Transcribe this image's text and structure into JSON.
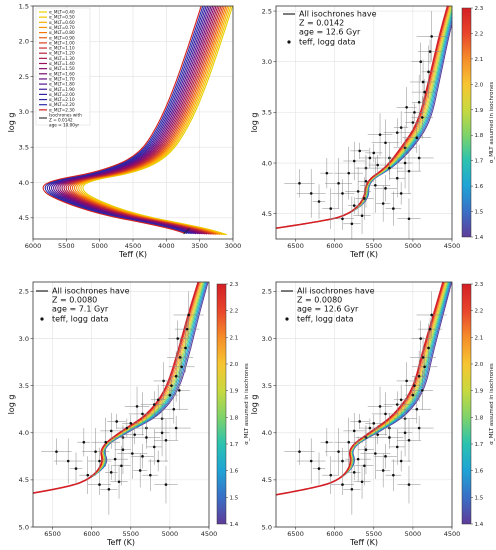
{
  "chart_data": [
    {
      "panel": "top-left",
      "type": "line",
      "xlabel": "Teff (K)",
      "ylabel": "log g",
      "xlim": [
        6000,
        3000
      ],
      "ylim": [
        4.8,
        1.5
      ],
      "xticks": [
        6000,
        5500,
        5000,
        4500,
        4000,
        3500,
        3000
      ],
      "xtick_labels": [
        "6000",
        "5500",
        "5000",
        "4500",
        "4000",
        "3500",
        "3000"
      ],
      "yticks": [
        1.5,
        2.0,
        2.5,
        3.0,
        3.5,
        4.0,
        4.5
      ],
      "ytick_labels": [
        "1.5",
        "2.0",
        "2.5",
        "3.0",
        "3.5",
        "4.0",
        "4.5"
      ],
      "grid": true,
      "legend_position": "upper-left",
      "legend_entries": [
        "α_MLT=0.40",
        "α_MLT=0.50",
        "α_MLT=0.60",
        "α_MLT=0.70",
        "α_MLT=0.80",
        "α_MLT=0.90",
        "α_MLT=1.00",
        "α_MLT=1.10",
        "α_MLT=1.20",
        "α_MLT=1.30",
        "α_MLT=1.40",
        "α_MLT=1.50",
        "α_MLT=1.60",
        "α_MLT=1.70",
        "α_MLT=1.80",
        "α_MLT=1.90",
        "α_MLT=2.00",
        "α_MLT=2.10",
        "α_MLT=2.20",
        "α_MLT=2.30"
      ],
      "legend_note": [
        "Isochrones with",
        "Z = 0.0142",
        "age = 10.00yr"
      ],
      "alpha_values": [
        0.4,
        0.5,
        0.6,
        0.7,
        0.8,
        0.9,
        1.0,
        1.1,
        1.2,
        1.3,
        1.4,
        1.5,
        1.6,
        1.7,
        1.8,
        1.9,
        2.0,
        2.1,
        2.2,
        2.3
      ],
      "series_colors": [
        "#e8d000",
        "#f2c400",
        "#f9ad00",
        "#fb9200",
        "#f47400",
        "#e75a10",
        "#d8421f",
        "#c82f2e",
        "#b8213d",
        "#a8174c",
        "#98105b",
        "#870c6a",
        "#760c78",
        "#650e84",
        "#541390",
        "#42199a",
        "#3520a2",
        "#2d26a8",
        "#2a2cac",
        "#d42020"
      ],
      "isochrone_xy": {
        "note": "per alpha: [Teff, logg] knots; Teff shifts cooler as alpha decreases",
        "base": [
          [
            3720,
            4.72
          ],
          [
            3900,
            4.66
          ],
          [
            4400,
            4.56
          ],
          [
            5000,
            4.45
          ],
          [
            5550,
            4.28
          ],
          [
            5880,
            4.12
          ],
          [
            5800,
            3.98
          ],
          [
            5000,
            3.85
          ],
          [
            4420,
            3.62
          ],
          [
            4130,
            3.2
          ],
          [
            3900,
            2.7
          ],
          [
            3680,
            2.1
          ],
          [
            3460,
            1.45
          ]
        ]
      }
    },
    {
      "panel": "top-right",
      "type": "line+scatter",
      "xlabel": "Teff (K)",
      "ylabel": "log g",
      "xlim": [
        6750,
        4500
      ],
      "ylim": [
        4.75,
        2.45
      ],
      "xticks": [
        6500,
        6000,
        5500,
        5000,
        4500
      ],
      "xtick_labels": [
        "6500",
        "6000",
        "5500",
        "5000",
        "4500"
      ],
      "yticks": [
        2.5,
        3.0,
        3.5,
        4.0,
        4.5
      ],
      "ytick_labels": [
        "2.5",
        "3.0",
        "3.5",
        "4.0",
        "4.5"
      ],
      "grid": true,
      "legend_position": "upper-left",
      "legend_entries": [
        "All isochrones have",
        "Z = 0.0142",
        "age = 12.6 Gyr",
        "teff, logg data"
      ],
      "colorbar": {
        "label": "α_MLT assumed in isochrones",
        "range": [
          1.4,
          2.3
        ],
        "ticks": [
          "1.4",
          "1.5",
          "1.6",
          "1.7",
          "1.8",
          "1.9",
          "2.0",
          "2.1",
          "2.2",
          "2.3"
        ]
      }
    },
    {
      "panel": "bottom-left",
      "type": "line+scatter",
      "xlabel": "Teff (K)",
      "ylabel": "log g",
      "xlim": [
        6750,
        4500
      ],
      "ylim": [
        5.0,
        2.4
      ],
      "xticks": [
        6500,
        6000,
        5500,
        5000,
        4500
      ],
      "xtick_labels": [
        "6500",
        "6000",
        "5500",
        "5000",
        "4500"
      ],
      "yticks": [
        2.5,
        3.0,
        3.5,
        4.0,
        4.5,
        5.0
      ],
      "ytick_labels": [
        "2.5",
        "3.0",
        "3.5",
        "4.0",
        "4.5",
        "5.0"
      ],
      "grid": true,
      "legend_position": "upper-left",
      "legend_entries": [
        "All isochrones have",
        "Z = 0.0080",
        "age = 7.1 Gyr",
        "teff, logg data"
      ],
      "colorbar": {
        "label": "α_MLT assumed in isochrones",
        "range": [
          1.4,
          2.3
        ],
        "ticks": [
          "1.4",
          "1.5",
          "1.6",
          "1.7",
          "1.8",
          "1.9",
          "2.0",
          "2.1",
          "2.2",
          "2.3"
        ]
      }
    },
    {
      "panel": "bottom-right",
      "type": "line+scatter",
      "xlabel": "Teff (K)",
      "ylabel": "log g",
      "xlim": [
        6750,
        4500
      ],
      "ylim": [
        5.0,
        2.4
      ],
      "xticks": [
        6500,
        6000,
        5500,
        5000,
        4500
      ],
      "xtick_labels": [
        "6500",
        "6000",
        "5500",
        "5000",
        "4500"
      ],
      "yticks": [
        2.5,
        3.0,
        3.5,
        4.0,
        4.5,
        5.0
      ],
      "ytick_labels": [
        "2.5",
        "3.0",
        "3.5",
        "4.0",
        "4.5",
        "5.0"
      ],
      "grid": true,
      "legend_position": "upper-left",
      "legend_entries": [
        "All isochrones have",
        "Z = 0.0080",
        "age = 12.6 Gyr",
        "teff, logg data"
      ],
      "colorbar": {
        "label": "α_MLT assumed in isochrones",
        "range": [
          1.4,
          2.3
        ],
        "ticks": [
          "1.4",
          "1.5",
          "1.6",
          "1.7",
          "1.8",
          "1.9",
          "2.0",
          "2.1",
          "2.2",
          "2.3"
        ]
      }
    }
  ],
  "observations_teff_logg": [
    [
      5750,
      4.42
    ],
    [
      5620,
      4.35
    ],
    [
      5900,
      4.3
    ],
    [
      5480,
      4.22
    ],
    [
      6050,
      4.45
    ],
    [
      5350,
      4.25
    ],
    [
      5820,
      4.1
    ],
    [
      5200,
      4.15
    ],
    [
      5600,
      4.05
    ],
    [
      5950,
      4.2
    ],
    [
      5380,
      4.4
    ],
    [
      5150,
      4.3
    ],
    [
      5700,
      4.28
    ],
    [
      6200,
      4.38
    ],
    [
      5450,
      4.02
    ],
    [
      5050,
      4.08
    ],
    [
      5300,
      3.95
    ],
    [
      5500,
      3.9
    ],
    [
      5100,
      3.85
    ],
    [
      4950,
      3.75
    ],
    [
      5000,
      3.6
    ],
    [
      4880,
      3.55
    ],
    [
      5200,
      3.7
    ],
    [
      4920,
      3.4
    ],
    [
      5080,
      3.45
    ],
    [
      4850,
      3.3
    ],
    [
      4800,
      3.1
    ],
    [
      4900,
      3.0
    ],
    [
      4780,
      2.9
    ],
    [
      4760,
      2.75
    ],
    [
      5650,
      4.52
    ],
    [
      5900,
      4.55
    ],
    [
      6300,
      4.3
    ],
    [
      5250,
      4.45
    ],
    [
      5550,
      3.95
    ],
    [
      5350,
      3.8
    ],
    [
      5150,
      3.65
    ],
    [
      4980,
      3.5
    ],
    [
      4870,
      3.2
    ],
    [
      6100,
      4.1
    ],
    [
      5680,
      3.88
    ],
    [
      5420,
      3.72
    ],
    [
      6450,
      4.2
    ],
    [
      5780,
      4.6
    ],
    [
      5050,
      4.55
    ],
    [
      4920,
      3.95
    ],
    [
      5600,
      4.18
    ],
    [
      5750,
      3.98
    ],
    [
      5300,
      4.05
    ],
    [
      5100,
      4.0
    ]
  ]
}
